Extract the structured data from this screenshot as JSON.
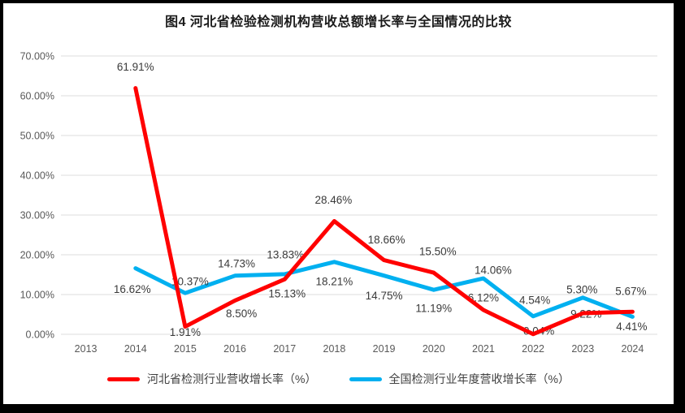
{
  "title": "图4 河北省检验检测机构营收总额增长率与全国情况的比较",
  "chart_data": {
    "type": "line",
    "title": "图4 河北省检验检测机构营收总额增长率与全国情况的比较",
    "categories": [
      "2013",
      "2014",
      "2015",
      "2016",
      "2017",
      "2018",
      "2019",
      "2020",
      "2021",
      "2022",
      "2023",
      "2024"
    ],
    "xlabel": "",
    "ylabel": "",
    "ylim": [
      0,
      70
    ],
    "y_tick_step": 10,
    "y_tick_labels": [
      "0.00%",
      "10.00%",
      "20.00%",
      "30.00%",
      "40.00%",
      "50.00%",
      "60.00%",
      "70.00%"
    ],
    "grid": true,
    "legend_position": "bottom",
    "colors": {
      "hebei_line": "#FF0000",
      "national_line": "#00B0F0",
      "gridline": "#DEDEDE",
      "axis_text": "#595959",
      "data_label_text": "#3A3A3A"
    },
    "series": [
      {
        "name": "河北省检测行业营收增长率（%）",
        "color": "#FF0000",
        "values": [
          null,
          61.91,
          1.91,
          8.5,
          13.83,
          28.46,
          18.66,
          15.5,
          6.12,
          0.04,
          5.3,
          5.67
        ],
        "data_labels": [
          null,
          "61.91%",
          "1.91%",
          "8.50%",
          "13.83%",
          "28.46%",
          "18.66%",
          "15.50%",
          "6.12%",
          "0.04%",
          "5.30%",
          "5.67%"
        ],
        "label_offsets": [
          null,
          [
            0,
            -26
          ],
          [
            0,
            7
          ],
          [
            8,
            16
          ],
          [
            1,
            -30
          ],
          [
            -1,
            -26
          ],
          [
            3,
            -25
          ],
          [
            5,
            -26
          ],
          [
            0,
            -15
          ],
          [
            7,
            -4
          ],
          [
            -1,
            -29
          ],
          [
            -2,
            -25
          ]
        ]
      },
      {
        "name": "全国检测行业年度营收增长率（%）",
        "color": "#00B0F0",
        "values": [
          null,
          16.62,
          10.37,
          14.73,
          15.13,
          18.21,
          14.75,
          11.19,
          14.06,
          4.54,
          9.22,
          4.41
        ],
        "data_labels": [
          null,
          "16.62%",
          "10.37%",
          "14.73%",
          "15.13%",
          "18.21%",
          "14.75%",
          "11.19%",
          "14.06%",
          "4.54%",
          "9.22%",
          "4.41%"
        ],
        "label_offsets": [
          null,
          [
            -4,
            26
          ],
          [
            6,
            -14
          ],
          [
            2,
            -15
          ],
          [
            3,
            24
          ],
          [
            0,
            24
          ],
          [
            0,
            25
          ],
          [
            0,
            23
          ],
          [
            12,
            -10
          ],
          [
            2,
            -20
          ],
          [
            4,
            20
          ],
          [
            -1,
            12
          ]
        ]
      }
    ]
  }
}
